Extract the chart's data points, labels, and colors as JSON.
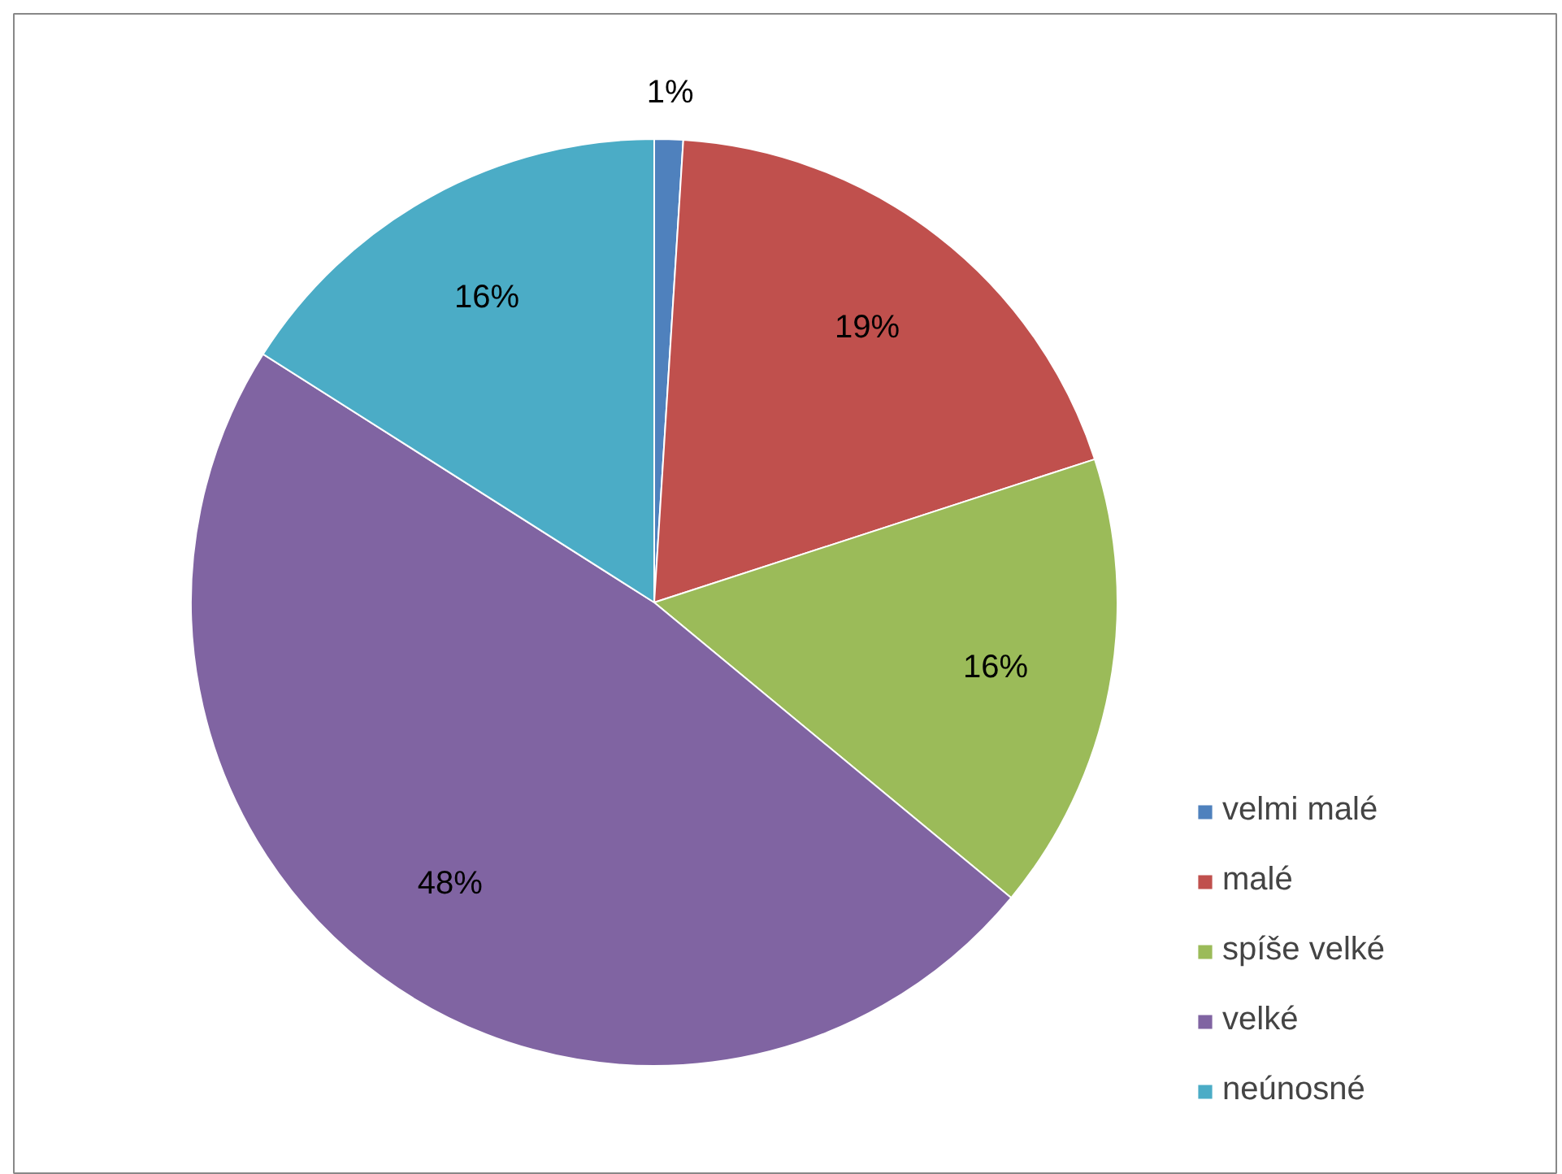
{
  "chart_data": {
    "type": "pie",
    "categories": [
      "velmi malé",
      "malé",
      "spíše velké",
      "velké",
      "neúnosné"
    ],
    "values": [
      1,
      19,
      16,
      48,
      16
    ],
    "colors": [
      "#4f81bd",
      "#c0504d",
      "#9bbb59",
      "#8064a2",
      "#4bacc6"
    ],
    "value_labels": [
      "1%",
      "19%",
      "16%",
      "48%",
      "16%"
    ],
    "legend": "right"
  }
}
